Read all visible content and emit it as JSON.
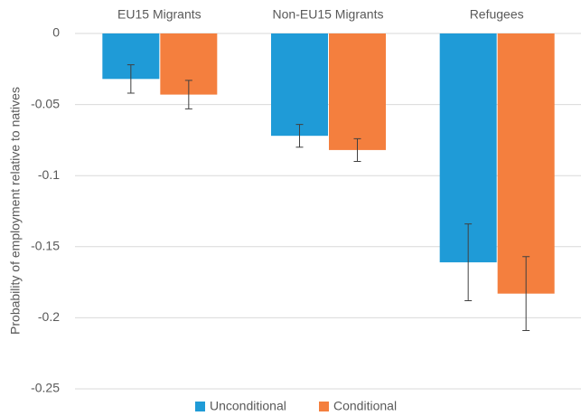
{
  "chart_data": {
    "type": "bar",
    "y_label": "Probability of employment relative to natives",
    "categories": [
      "EU15 Migrants",
      "Non-EU15 Migrants",
      "Refugees"
    ],
    "series": [
      {
        "name": "Unconditional",
        "color": "#1f9bd7",
        "values": [
          -0.032,
          -0.072,
          -0.161
        ],
        "errors": [
          0.01,
          0.008,
          0.027
        ]
      },
      {
        "name": "Conditional",
        "color": "#f47f3e",
        "values": [
          -0.043,
          -0.082,
          -0.183
        ],
        "errors": [
          0.01,
          0.008,
          0.026
        ]
      }
    ],
    "ylim": [
      -0.25,
      0
    ],
    "yticks": [
      0,
      -0.05,
      -0.1,
      -0.15,
      -0.2,
      -0.25
    ],
    "grid": true,
    "legend": "bottom"
  }
}
